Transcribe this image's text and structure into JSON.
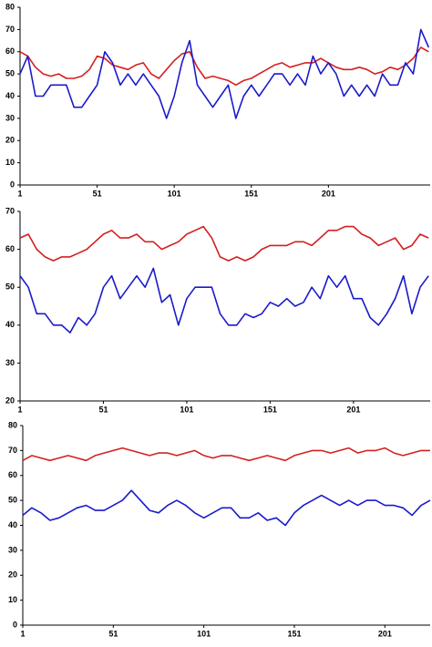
{
  "chart_data": [
    {
      "type": "line",
      "xlim": [
        1,
        267
      ],
      "xticks": [
        1,
        51,
        101,
        151,
        201
      ],
      "ylim": [
        0,
        80
      ],
      "yticks": [
        0,
        10,
        20,
        30,
        40,
        50,
        60,
        70,
        80
      ],
      "x": [
        1,
        6,
        11,
        16,
        21,
        26,
        31,
        36,
        41,
        46,
        51,
        56,
        61,
        66,
        71,
        76,
        81,
        86,
        91,
        96,
        101,
        106,
        111,
        116,
        121,
        126,
        131,
        136,
        141,
        146,
        151,
        156,
        161,
        166,
        171,
        176,
        181,
        186,
        191,
        196,
        201,
        206,
        211,
        216,
        221,
        226,
        231,
        236,
        241,
        246,
        251,
        256,
        261,
        266
      ],
      "series": [
        {
          "color": "#d42020",
          "values": [
            60,
            58,
            53,
            50,
            49,
            50,
            48,
            48,
            49,
            52,
            58,
            57,
            54,
            53,
            52,
            54,
            55,
            50,
            48,
            52,
            56,
            59,
            60,
            53,
            48,
            49,
            48,
            47,
            45,
            47,
            48,
            50,
            52,
            54,
            55,
            53,
            54,
            55,
            55,
            57,
            55,
            53,
            52,
            52,
            53,
            52,
            50,
            51,
            53,
            52,
            54,
            57,
            62,
            60
          ]
        },
        {
          "color": "#1a1acc",
          "values": [
            50,
            58,
            40,
            40,
            45,
            45,
            45,
            35,
            35,
            40,
            45,
            60,
            55,
            45,
            50,
            45,
            50,
            45,
            40,
            30,
            40,
            55,
            65,
            45,
            40,
            35,
            40,
            45,
            30,
            40,
            45,
            40,
            45,
            50,
            50,
            45,
            50,
            45,
            58,
            50,
            55,
            50,
            40,
            45,
            40,
            45,
            40,
            50,
            45,
            45,
            55,
            50,
            70,
            62
          ]
        }
      ]
    },
    {
      "type": "line",
      "xlim": [
        1,
        247
      ],
      "xticks": [
        1,
        51,
        101,
        151,
        201
      ],
      "ylim": [
        20,
        70
      ],
      "yticks": [
        20,
        30,
        40,
        50,
        60,
        70
      ],
      "x": [
        1,
        6,
        11,
        16,
        21,
        26,
        31,
        36,
        41,
        46,
        51,
        56,
        61,
        66,
        71,
        76,
        81,
        86,
        91,
        96,
        101,
        106,
        111,
        116,
        121,
        126,
        131,
        136,
        141,
        146,
        151,
        156,
        161,
        166,
        171,
        176,
        181,
        186,
        191,
        196,
        201,
        206,
        211,
        216,
        221,
        226,
        231,
        236,
        241,
        246
      ],
      "series": [
        {
          "color": "#d42020",
          "values": [
            63,
            64,
            60,
            58,
            57,
            58,
            58,
            59,
            60,
            62,
            64,
            65,
            63,
            63,
            64,
            62,
            62,
            60,
            61,
            62,
            64,
            65,
            66,
            63,
            58,
            57,
            58,
            57,
            58,
            60,
            61,
            61,
            61,
            62,
            62,
            61,
            63,
            65,
            65,
            66,
            66,
            64,
            63,
            61,
            62,
            63,
            60,
            61,
            64,
            63
          ]
        },
        {
          "color": "#1a1acc",
          "values": [
            53,
            50,
            43,
            43,
            40,
            40,
            38,
            42,
            40,
            43,
            50,
            53,
            47,
            50,
            53,
            50,
            55,
            46,
            48,
            40,
            47,
            50,
            50,
            50,
            43,
            40,
            40,
            43,
            42,
            43,
            46,
            45,
            47,
            45,
            46,
            50,
            47,
            53,
            50,
            53,
            47,
            47,
            42,
            40,
            43,
            47,
            53,
            43,
            50,
            53
          ]
        }
      ]
    },
    {
      "type": "line",
      "xlim": [
        1,
        226
      ],
      "xticks": [
        1,
        51,
        101,
        151,
        201
      ],
      "ylim": [
        0,
        80
      ],
      "yticks": [
        0,
        10,
        20,
        30,
        40,
        50,
        60,
        70,
        80
      ],
      "x": [
        1,
        6,
        11,
        16,
        21,
        26,
        31,
        36,
        41,
        46,
        51,
        56,
        61,
        66,
        71,
        76,
        81,
        86,
        91,
        96,
        101,
        106,
        111,
        116,
        121,
        126,
        131,
        136,
        141,
        146,
        151,
        156,
        161,
        166,
        171,
        176,
        181,
        186,
        191,
        196,
        201,
        206,
        211,
        216,
        221,
        226
      ],
      "series": [
        {
          "color": "#d42020",
          "values": [
            66,
            68,
            67,
            66,
            67,
            68,
            67,
            66,
            68,
            69,
            70,
            71,
            70,
            69,
            68,
            69,
            69,
            68,
            69,
            70,
            68,
            67,
            68,
            68,
            67,
            66,
            67,
            68,
            67,
            66,
            68,
            69,
            70,
            70,
            69,
            70,
            71,
            69,
            70,
            70,
            71,
            69,
            68,
            69,
            70,
            70
          ]
        },
        {
          "color": "#1a1acc",
          "values": [
            44,
            47,
            45,
            42,
            43,
            45,
            47,
            48,
            46,
            46,
            48,
            50,
            54,
            50,
            46,
            45,
            48,
            50,
            48,
            45,
            43,
            45,
            47,
            47,
            43,
            43,
            45,
            42,
            43,
            40,
            45,
            48,
            50,
            52,
            50,
            48,
            50,
            48,
            50,
            50,
            48,
            48,
            47,
            44,
            48,
            50
          ]
        }
      ]
    }
  ]
}
